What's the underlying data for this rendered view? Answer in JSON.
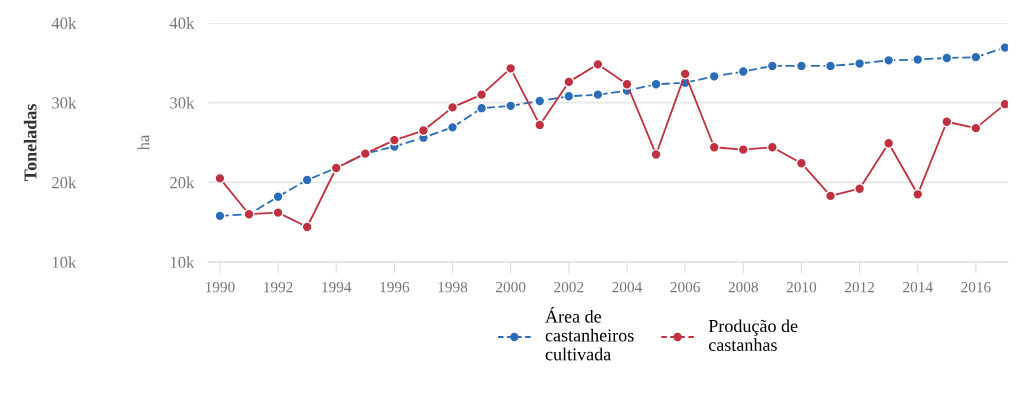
{
  "chart_data": {
    "type": "line",
    "ylabel": "ha",
    "y2label": "Toneladas",
    "x": [
      1990,
      1991,
      1992,
      1993,
      1994,
      1995,
      1996,
      1997,
      1998,
      1999,
      2000,
      2001,
      2002,
      2003,
      2004,
      2005,
      2006,
      2007,
      2008,
      2009,
      2010,
      2011,
      2012,
      2013,
      2014,
      2015,
      2016,
      2017
    ],
    "series": [
      {
        "name": "Área de\ncastanheiros\ncultivada",
        "color": "#2b6cb8",
        "line_style": "dashed",
        "values": [
          15800,
          16000,
          18200,
          20300,
          21800,
          23600,
          24500,
          25600,
          26900,
          29300,
          29600,
          30200,
          30800,
          31000,
          31500,
          32300,
          32500,
          33300,
          33900,
          34600,
          34600,
          34600,
          34900,
          35300,
          35400,
          35600,
          35700,
          36900
        ]
      },
      {
        "name": "Produção de\ncastanhas",
        "color": "#c0303f",
        "line_style": "solid",
        "values": [
          20500,
          16000,
          16200,
          14400,
          21800,
          23600,
          25300,
          26500,
          29400,
          31000,
          34300,
          27200,
          32600,
          34800,
          32300,
          23500,
          33600,
          24400,
          24100,
          24400,
          22400,
          18300,
          19200,
          24900,
          18500,
          27600,
          26800,
          29800
        ]
      }
    ],
    "xlim": [
      1989.6,
      2017.1
    ],
    "xticks": [
      1990,
      1992,
      1994,
      1996,
      1998,
      2000,
      2002,
      2004,
      2006,
      2008,
      2010,
      2012,
      2014,
      2016
    ],
    "ylim": [
      10000,
      40000
    ],
    "yticks": [
      {
        "value": 10000,
        "label": "10k"
      },
      {
        "value": 20000,
        "label": "20k"
      },
      {
        "value": 30000,
        "label": "30k"
      },
      {
        "value": 40000,
        "label": "40k"
      }
    ],
    "y2lim": [
      10000,
      40000
    ],
    "y2ticks": [
      {
        "value": 10000,
        "label": "10k"
      },
      {
        "value": 20000,
        "label": "20k"
      },
      {
        "value": 30000,
        "label": "30k"
      },
      {
        "value": 40000,
        "label": "40k"
      }
    ],
    "grid": "y",
    "legend": "bottom",
    "marker": "circle"
  }
}
